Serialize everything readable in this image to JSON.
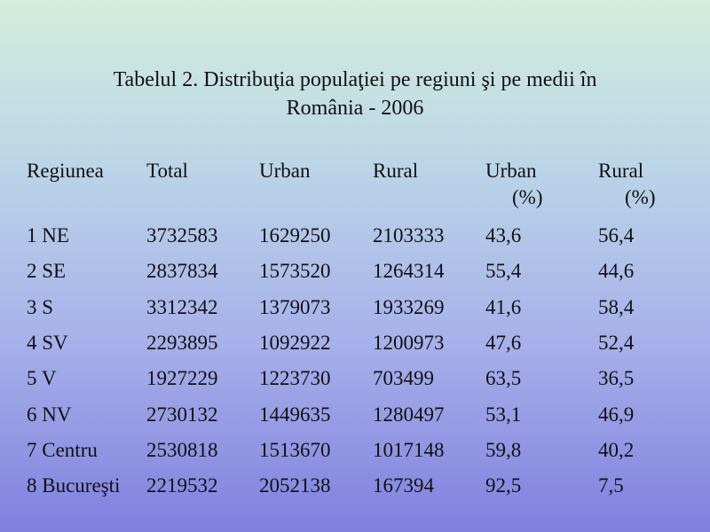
{
  "title": [
    "Tabelul 2. Distribuţia populaţiei pe regiuni şi pe medii în",
    "România - 2006"
  ],
  "table": {
    "header": [
      [
        "Regiunea"
      ],
      [
        "Total"
      ],
      [
        "Urban"
      ],
      [
        "Rural"
      ],
      [
        "Urban",
        "(%)"
      ],
      [
        "Rural",
        "(%)"
      ]
    ],
    "rows": [
      [
        "1 NE",
        "3732583",
        "1629250",
        "2103333",
        "43,6",
        "56,4"
      ],
      [
        "2 SE",
        "2837834",
        "1573520",
        "1264314",
        "55,4",
        "44,6"
      ],
      [
        "3 S",
        "3312342",
        "1379073",
        "1933269",
        "41,6",
        "58,4"
      ],
      [
        "4 SV",
        "2293895",
        "1092922",
        "1200973",
        "47,6",
        "52,4"
      ],
      [
        "5 V",
        "1927229",
        "1223730",
        "703499",
        "63,5",
        "36,5"
      ],
      [
        "6 NV",
        "2730132",
        "1449635",
        "1280497",
        "53,1",
        "46,9"
      ],
      [
        "7 Centru",
        "2530818",
        "1513670",
        "1017148",
        "59,8",
        "40,2"
      ],
      [
        "8 Bucureşti",
        "2219532",
        "2052138",
        "167394",
        "92,5",
        "7,5"
      ]
    ]
  }
}
